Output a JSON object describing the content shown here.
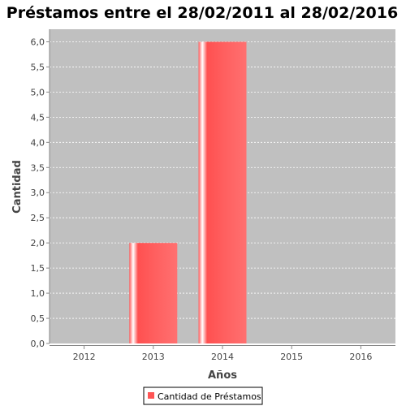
{
  "chart_data": {
    "type": "bar",
    "title": "Préstamos entre el  28/02/2011 al 28/02/2016",
    "xlabel": "Años",
    "ylabel": "Cantidad",
    "categories": [
      "2012",
      "2013",
      "2014",
      "2015",
      "2016"
    ],
    "series": [
      {
        "name": "Cantidad de Préstamos",
        "values": [
          0,
          2,
          6,
          0,
          0
        ],
        "color": "#ff5555"
      }
    ],
    "ylim": [
      0,
      6.25
    ],
    "yticks": [
      "0,0",
      "0,5",
      "1,0",
      "1,5",
      "2,0",
      "2,5",
      "3,0",
      "3,5",
      "4,0",
      "4,5",
      "5,0",
      "5,5",
      "6,0"
    ],
    "ytick_values": [
      0,
      0.5,
      1.0,
      1.5,
      2.0,
      2.5,
      3.0,
      3.5,
      4.0,
      4.5,
      5.0,
      5.5,
      6.0
    ],
    "grid": true,
    "legend_position": "bottom-center",
    "plot_background": "#c0c0c0",
    "grid_color": "#ffffff"
  }
}
